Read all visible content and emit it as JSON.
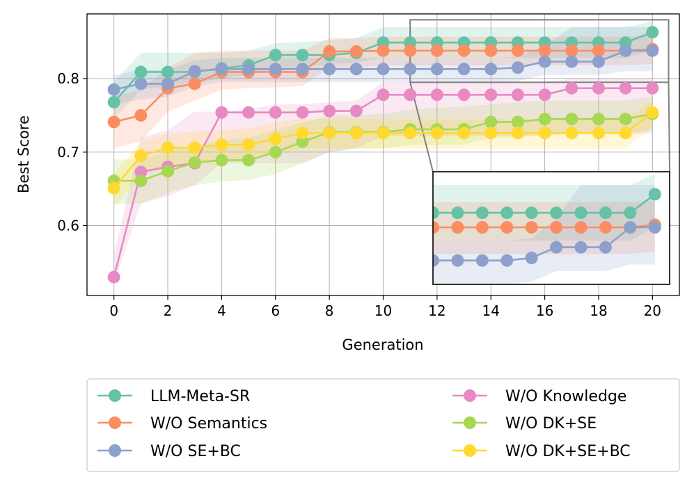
{
  "chart_data": {
    "type": "line",
    "title": "",
    "xlabel": "Generation",
    "ylabel": "Best Score",
    "xlim": [
      -1,
      21
    ],
    "ylim": [
      0.505,
      0.888
    ],
    "x_ticks": [
      0,
      2,
      4,
      6,
      8,
      10,
      12,
      14,
      16,
      18,
      20
    ],
    "y_ticks": [
      0.6,
      0.7,
      0.8
    ],
    "y_tick_labels": [
      "0.6",
      "0.7",
      "0.8"
    ],
    "grid": true,
    "legend_position": "bottom, outside plot, two columns",
    "x": [
      0,
      1,
      2,
      3,
      4,
      5,
      6,
      7,
      8,
      9,
      10,
      11,
      12,
      13,
      14,
      15,
      16,
      17,
      18,
      19,
      20
    ],
    "series": [
      {
        "name": "LLM-Meta-SR",
        "color": "#66c2a5",
        "values": [
          0.768,
          0.809,
          0.809,
          0.809,
          0.814,
          0.818,
          0.832,
          0.832,
          0.832,
          0.835,
          0.849,
          0.849,
          0.849,
          0.849,
          0.849,
          0.849,
          0.849,
          0.849,
          0.849,
          0.849,
          0.863
        ],
        "band_lower": [
          0.745,
          0.785,
          0.79,
          0.795,
          0.8,
          0.805,
          0.812,
          0.815,
          0.82,
          0.822,
          0.828,
          0.828,
          0.828,
          0.828,
          0.828,
          0.828,
          0.828,
          0.828,
          0.828,
          0.828,
          0.838
        ],
        "band_upper": [
          0.795,
          0.835,
          0.835,
          0.835,
          0.835,
          0.838,
          0.848,
          0.85,
          0.852,
          0.855,
          0.87,
          0.87,
          0.87,
          0.87,
          0.87,
          0.87,
          0.87,
          0.87,
          0.87,
          0.87,
          0.878
        ]
      },
      {
        "name": "W/O Semantics",
        "color": "#fc8d62",
        "values": [
          0.741,
          0.75,
          0.787,
          0.793,
          0.809,
          0.809,
          0.809,
          0.809,
          0.837,
          0.837,
          0.838,
          0.838,
          0.838,
          0.838,
          0.838,
          0.838,
          0.838,
          0.838,
          0.838,
          0.838,
          0.84
        ],
        "band_lower": [
          0.705,
          0.715,
          0.755,
          0.77,
          0.785,
          0.787,
          0.788,
          0.79,
          0.815,
          0.815,
          0.818,
          0.818,
          0.818,
          0.818,
          0.818,
          0.818,
          0.818,
          0.818,
          0.818,
          0.818,
          0.82
        ],
        "band_upper": [
          0.775,
          0.785,
          0.815,
          0.835,
          0.838,
          0.838,
          0.838,
          0.838,
          0.855,
          0.855,
          0.857,
          0.857,
          0.857,
          0.857,
          0.857,
          0.857,
          0.857,
          0.857,
          0.857,
          0.857,
          0.858
        ]
      },
      {
        "name": "W/O SE+BC",
        "color": "#8da0cb",
        "values": [
          0.785,
          0.793,
          0.793,
          0.81,
          0.813,
          0.813,
          0.813,
          0.813,
          0.813,
          0.813,
          0.813,
          0.813,
          0.813,
          0.813,
          0.813,
          0.815,
          0.823,
          0.823,
          0.823,
          0.838,
          0.838
        ],
        "band_lower": [
          0.765,
          0.772,
          0.775,
          0.79,
          0.795,
          0.795,
          0.795,
          0.795,
          0.795,
          0.795,
          0.795,
          0.795,
          0.795,
          0.795,
          0.795,
          0.797,
          0.805,
          0.805,
          0.805,
          0.81,
          0.81
        ],
        "band_upper": [
          0.805,
          0.812,
          0.812,
          0.825,
          0.828,
          0.828,
          0.828,
          0.828,
          0.828,
          0.828,
          0.828,
          0.828,
          0.828,
          0.828,
          0.828,
          0.83,
          0.845,
          0.87,
          0.87,
          0.87,
          0.87
        ]
      },
      {
        "name": "W/O Knowledge",
        "color": "#e78ac3",
        "values": [
          0.53,
          0.673,
          0.68,
          0.685,
          0.754,
          0.754,
          0.754,
          0.754,
          0.756,
          0.756,
          0.778,
          0.778,
          0.778,
          0.778,
          0.778,
          0.778,
          0.778,
          0.787,
          0.787,
          0.787,
          0.787
        ],
        "band_lower": [
          0.52,
          0.63,
          0.64,
          0.655,
          0.685,
          0.685,
          0.685,
          0.685,
          0.7,
          0.705,
          0.722,
          0.722,
          0.722,
          0.722,
          0.722,
          0.722,
          0.722,
          0.725,
          0.725,
          0.725,
          0.725
        ],
        "band_upper": [
          0.56,
          0.72,
          0.73,
          0.755,
          0.755,
          0.758,
          0.765,
          0.765,
          0.768,
          0.77,
          0.795,
          0.795,
          0.795,
          0.795,
          0.795,
          0.795,
          0.795,
          0.8,
          0.8,
          0.8,
          0.8
        ]
      },
      {
        "name": "W/O DK+SE",
        "color": "#a6d854",
        "values": [
          0.661,
          0.661,
          0.674,
          0.686,
          0.689,
          0.689,
          0.7,
          0.714,
          0.727,
          0.727,
          0.727,
          0.731,
          0.731,
          0.731,
          0.741,
          0.741,
          0.745,
          0.745,
          0.745,
          0.745,
          0.752
        ],
        "band_lower": [
          0.63,
          0.63,
          0.645,
          0.655,
          0.66,
          0.662,
          0.67,
          0.685,
          0.7,
          0.705,
          0.705,
          0.71,
          0.71,
          0.71,
          0.72,
          0.72,
          0.725,
          0.725,
          0.725,
          0.725,
          0.73
        ],
        "band_upper": [
          0.69,
          0.69,
          0.7,
          0.71,
          0.715,
          0.72,
          0.73,
          0.74,
          0.75,
          0.75,
          0.752,
          0.758,
          0.76,
          0.762,
          0.765,
          0.768,
          0.77,
          0.77,
          0.77,
          0.77,
          0.775
        ]
      },
      {
        "name": "W/O DK+SE+BC",
        "color": "#ffd92f",
        "values": [
          0.651,
          0.695,
          0.706,
          0.706,
          0.71,
          0.71,
          0.718,
          0.726,
          0.726,
          0.726,
          0.726,
          0.726,
          0.726,
          0.726,
          0.726,
          0.726,
          0.726,
          0.726,
          0.726,
          0.726,
          0.754
        ],
        "band_lower": [
          0.625,
          0.67,
          0.68,
          0.682,
          0.688,
          0.69,
          0.698,
          0.705,
          0.705,
          0.705,
          0.705,
          0.705,
          0.705,
          0.705,
          0.705,
          0.705,
          0.705,
          0.705,
          0.705,
          0.705,
          0.735
        ],
        "band_upper": [
          0.67,
          0.715,
          0.725,
          0.728,
          0.73,
          0.732,
          0.74,
          0.745,
          0.745,
          0.745,
          0.745,
          0.745,
          0.745,
          0.745,
          0.745,
          0.745,
          0.745,
          0.745,
          0.745,
          0.745,
          0.77
        ]
      }
    ],
    "inset": {
      "series_shown": [
        "LLM-Meta-SR",
        "W/O Semantics",
        "W/O SE+BC"
      ],
      "xlim": [
        11,
        20.6
      ],
      "ylim": [
        0.795,
        0.88
      ]
    }
  }
}
